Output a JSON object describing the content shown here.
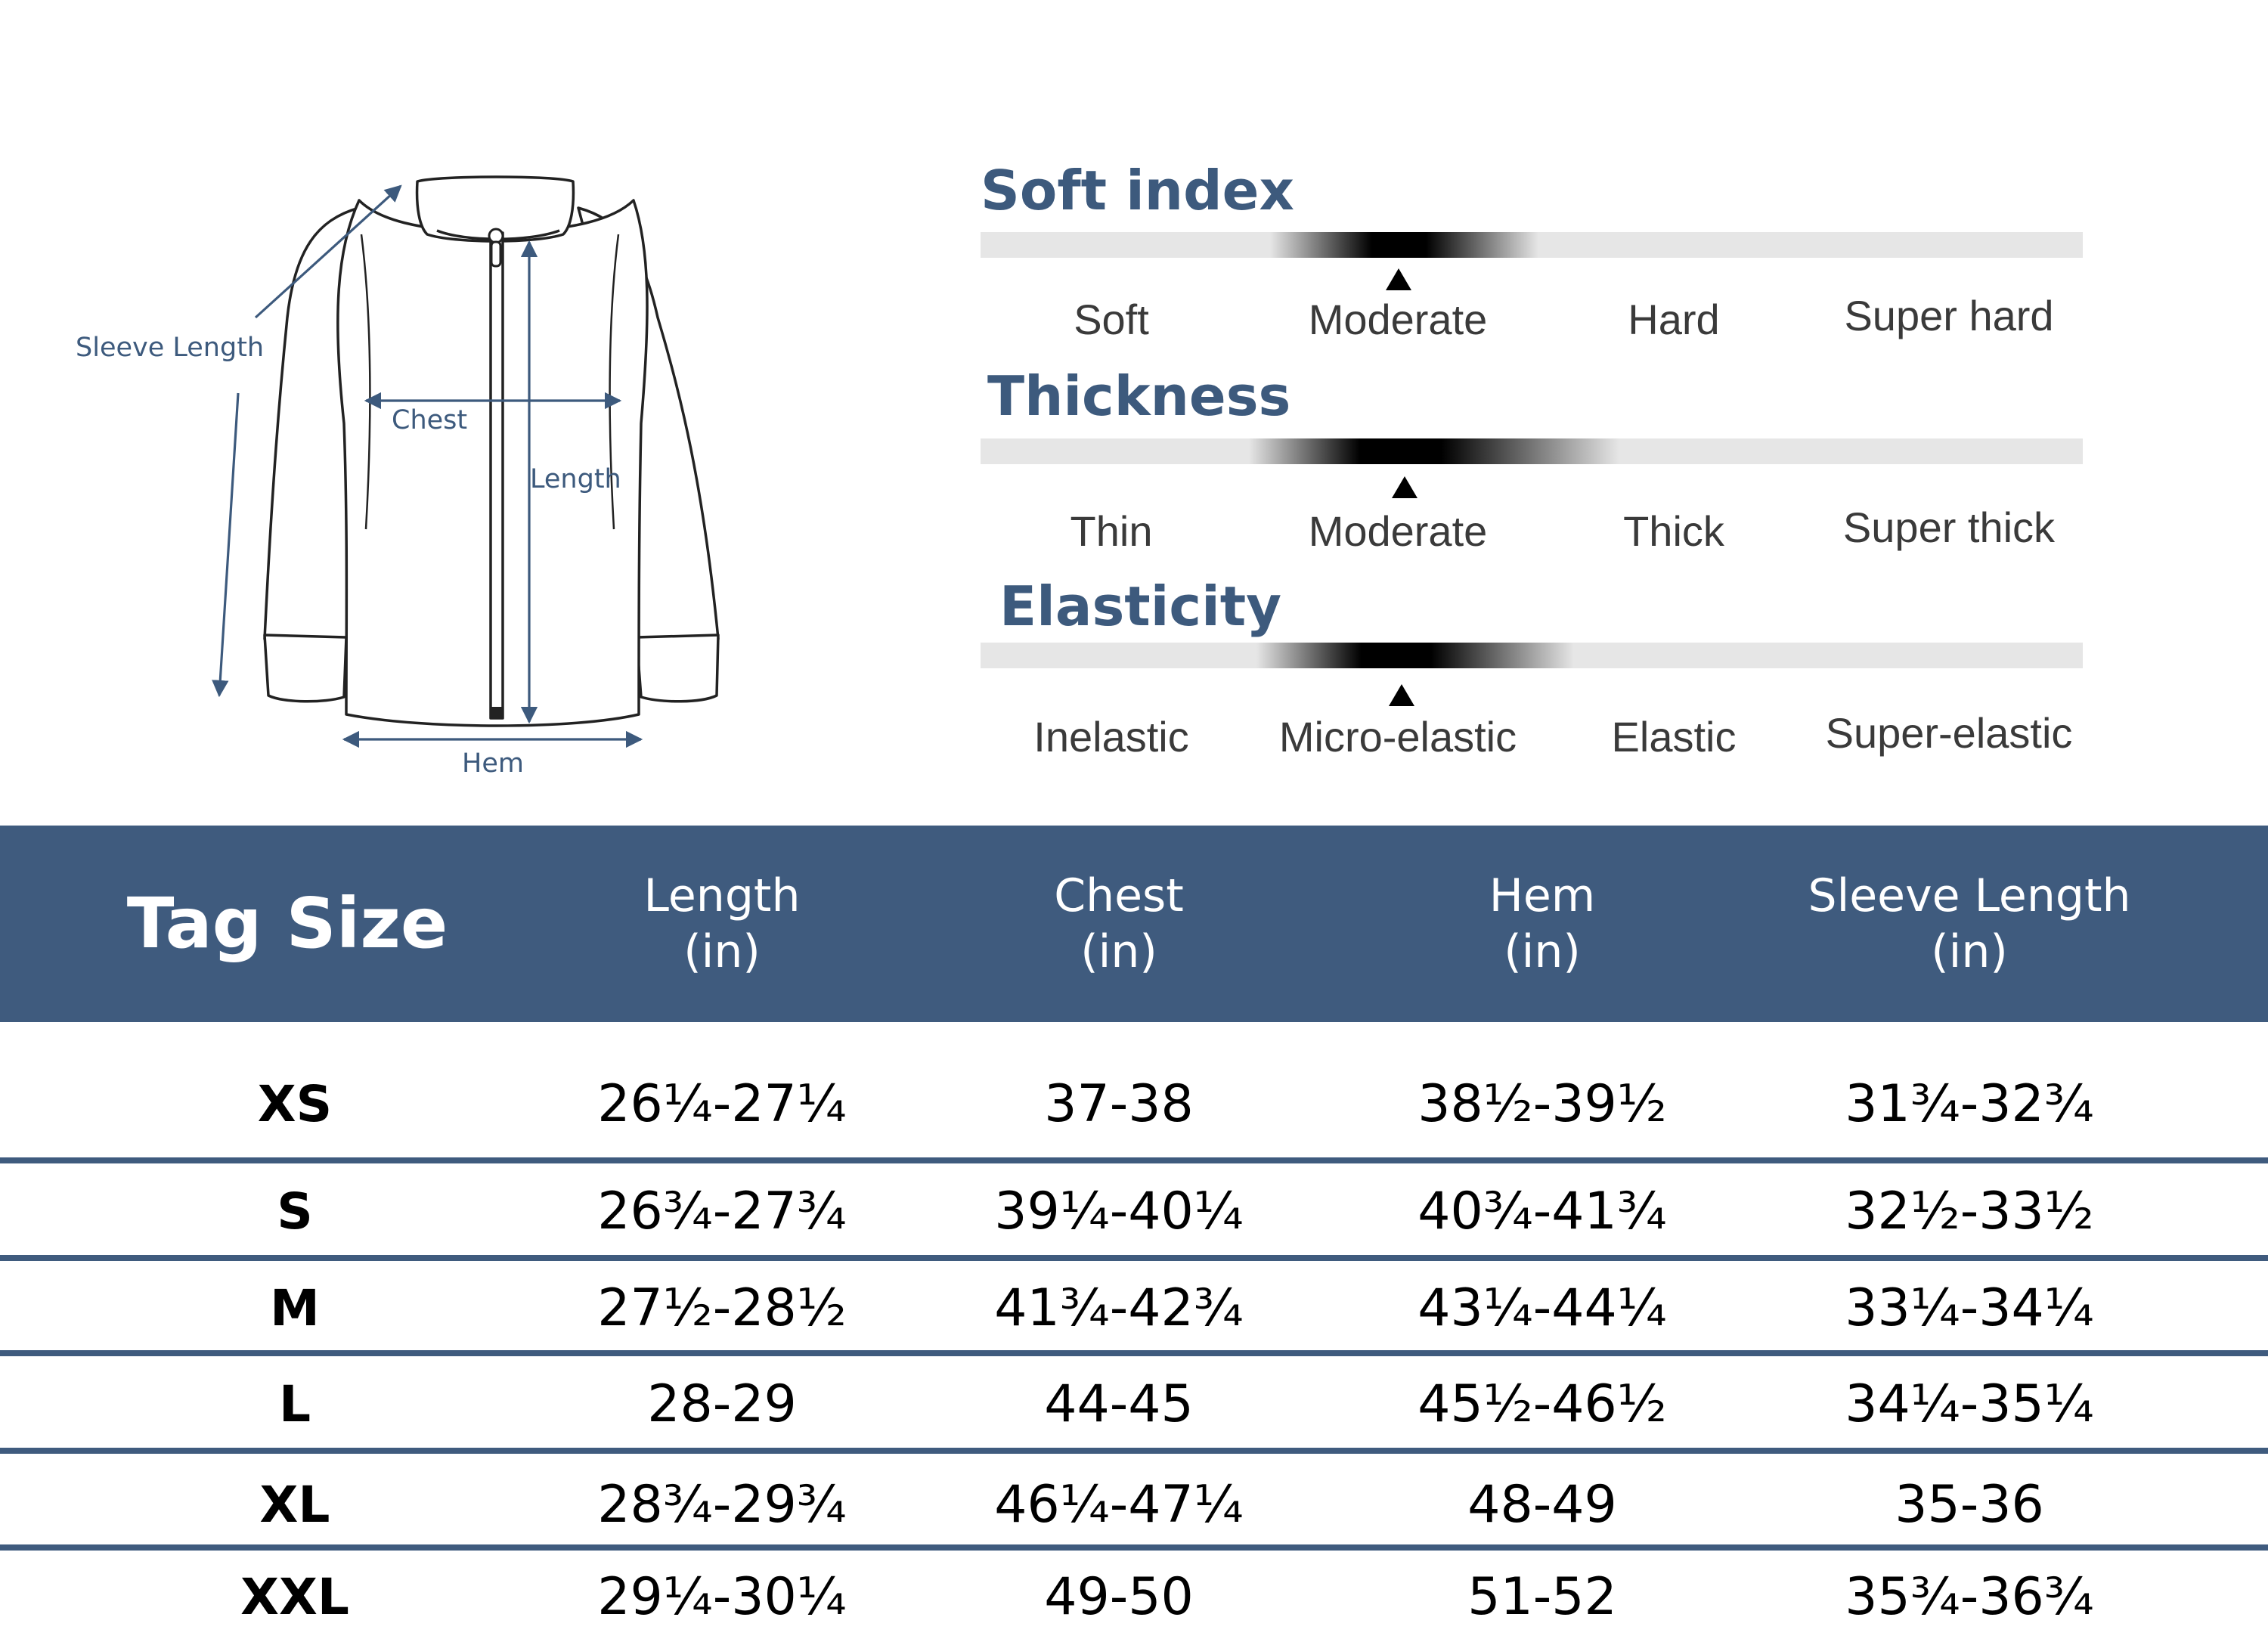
{
  "diagram": {
    "labels": {
      "sleeve_length": "Sleeve Length",
      "chest": "Chest",
      "length": "Length",
      "hem": "Hem"
    }
  },
  "indices": [
    {
      "title": "Soft index",
      "options": [
        "Soft",
        "Moderate",
        "Hard",
        "Super hard"
      ],
      "selected": "Moderate"
    },
    {
      "title": "Thickness",
      "options": [
        "Thin",
        "Moderate",
        "Thick",
        "Super thick"
      ],
      "selected": "Moderate"
    },
    {
      "title": "Elasticity",
      "options": [
        "Inelastic",
        "Micro-elastic",
        "Elastic",
        "Super-elastic"
      ],
      "selected": "Micro-elastic"
    }
  ],
  "table": {
    "headers": [
      {
        "line1": "Tag Size",
        "line2": ""
      },
      {
        "line1": "Length",
        "line2": "(in)"
      },
      {
        "line1": "Chest",
        "line2": "(in)"
      },
      {
        "line1": "Hem",
        "line2": "(in)"
      },
      {
        "line1": "Sleeve Length",
        "line2": "(in)"
      }
    ],
    "rows": [
      [
        "XS",
        "26¼-27¼",
        "37-38",
        "38½-39½",
        "31¾-32¾"
      ],
      [
        "S",
        "26¾-27¾",
        "39¼-40¼",
        "40¾-41¾",
        "32½-33½"
      ],
      [
        "M",
        "27½-28½",
        "41¾-42¾",
        "43¼-44¼",
        "33¼-34¼"
      ],
      [
        "L",
        "28-29",
        "44-45",
        "45½-46½",
        "34¼-35¼"
      ],
      [
        "XL",
        "28¾-29¾",
        "46¼-47¼",
        "48-49",
        "35-36"
      ],
      [
        "XXL",
        "29¼-30¼",
        "49-50",
        "51-52",
        "35¾-36¾"
      ]
    ]
  },
  "colors": {
    "brand_blue": "#3f5b7e",
    "label_blue": "#3d5a7d",
    "track_gray": "#e6e6e6"
  }
}
